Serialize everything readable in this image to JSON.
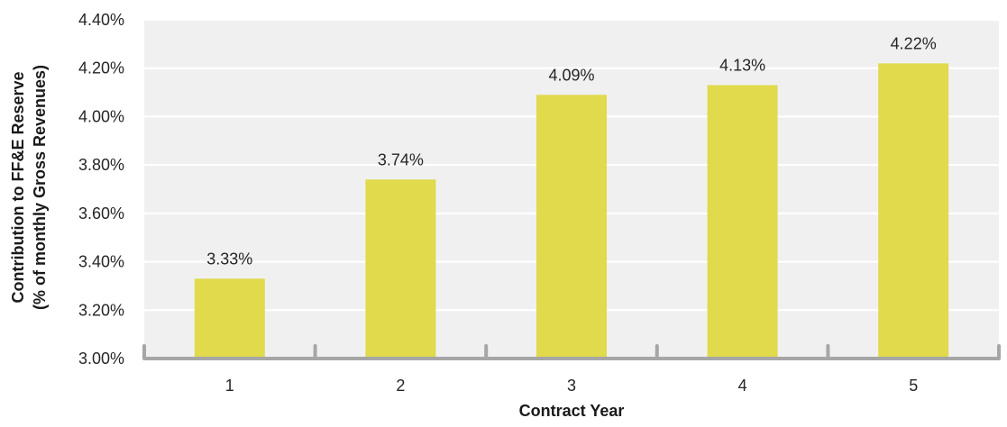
{
  "chart_data": {
    "type": "bar",
    "title": "",
    "xlabel": "Contract Year",
    "ylabel_line1": "Contribution to FF&E Reserve",
    "ylabel_line2": "(% of monthly Gross Revenues)",
    "categories": [
      "1",
      "2",
      "3",
      "4",
      "5"
    ],
    "values": [
      3.33,
      3.74,
      4.09,
      4.13,
      4.22
    ],
    "data_labels": [
      "3.33%",
      "3.74%",
      "4.09%",
      "4.13%",
      "4.22%"
    ],
    "ylim": [
      3.0,
      4.4
    ],
    "y_ticks": [
      3.0,
      3.2,
      3.4,
      3.6,
      3.8,
      4.0,
      4.2,
      4.4
    ],
    "y_tick_labels": [
      "3.00%",
      "3.20%",
      "3.40%",
      "3.60%",
      "3.80%",
      "4.00%",
      "4.20%",
      "4.40%"
    ],
    "grid": true,
    "legend": "none",
    "colors": {
      "bar": "#e0da4c",
      "plot_background": "#f0f0f0",
      "gridline": "#ffffff",
      "axis": "#a6a6a6"
    }
  }
}
